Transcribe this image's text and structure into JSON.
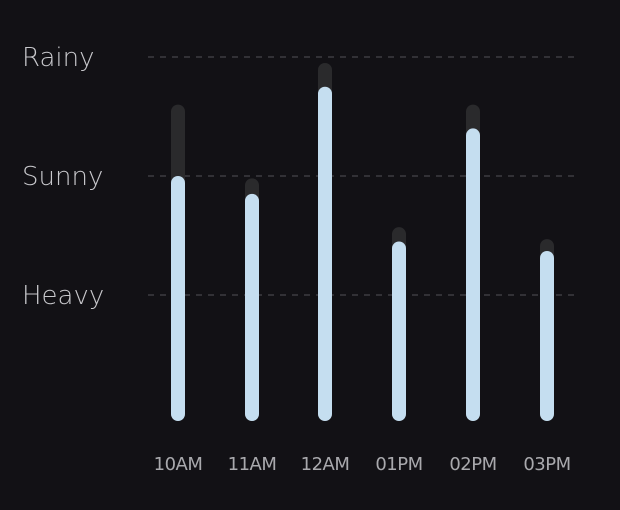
{
  "chart_data": {
    "type": "bar",
    "title": "",
    "xlabel": "",
    "ylabel": "",
    "categories": [
      "10AM",
      "11AM",
      "12AM",
      "01PM",
      "02PM",
      "03PM"
    ],
    "y_levels": [
      "Heavy",
      "Sunny",
      "Rainy"
    ],
    "y_level_values": [
      1,
      2,
      3
    ],
    "ylim": [
      -0.05,
      3.0
    ],
    "series": [
      {
        "values": [
          2.0,
          1.85,
          2.75,
          1.45,
          2.4,
          1.37
        ],
        "color": "#c5def0"
      },
      {
        "values": [
          2.6,
          1.98,
          2.95,
          1.57,
          2.6,
          1.47
        ],
        "color": "#2a2a2c"
      }
    ],
    "grid": true,
    "legend": "none"
  },
  "colors": {
    "background": "#121115",
    "bar": "#c5def0",
    "track": "#2a2a2c",
    "grid": "#3c3c41",
    "y_text": "#c8c8cc",
    "x_text": "#a9a9ad"
  }
}
